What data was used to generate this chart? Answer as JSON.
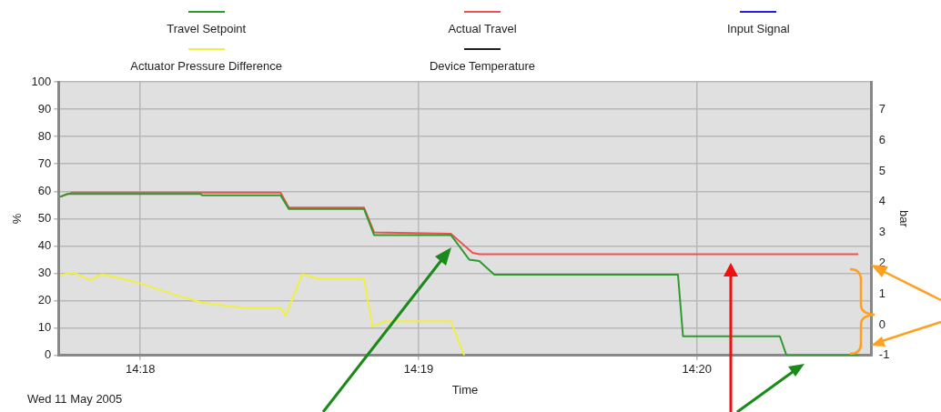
{
  "chart_data": {
    "type": "line",
    "xlabel": "Time",
    "ylabel": "%",
    "y2label": "bar",
    "annotations": [
      "Wed 11 May 2005"
    ],
    "xlim": [
      14.2951,
      14.3438
    ],
    "xticks": [
      {
        "value": 14.3,
        "label": "14:18"
      },
      {
        "value": 14.316667,
        "label": "14:19"
      },
      {
        "value": 14.333333,
        "label": "14:20"
      }
    ],
    "ylim": [
      0,
      100
    ],
    "yticks": [
      0,
      10,
      20,
      30,
      40,
      50,
      60,
      70,
      80,
      90,
      100
    ],
    "y2lim": [
      -1,
      7.9
    ],
    "y2ticks": [
      -1,
      0,
      1,
      2,
      3,
      4,
      5,
      6,
      7
    ],
    "grid": true,
    "legend": "top",
    "marker": "none",
    "series": [
      {
        "name": "Travel Setpoint",
        "color": "#2e9a2e",
        "x": [
          14.2952,
          14.2956,
          14.3036,
          14.3037,
          14.3084,
          14.3089,
          14.3134,
          14.314,
          14.3186,
          14.3197,
          14.3203,
          14.3212,
          14.3322,
          14.3325,
          14.3383,
          14.3387,
          14.343
        ],
        "values": [
          58,
          59,
          59,
          58.5,
          58.5,
          53.5,
          53.5,
          44,
          44,
          35,
          34.5,
          29.5,
          29.5,
          7,
          7,
          0,
          0
        ]
      },
      {
        "name": "Actual Travel",
        "color": "#f05050",
        "x": [
          14.2952,
          14.2959,
          14.3084,
          14.3089,
          14.3134,
          14.314,
          14.3186,
          14.3199,
          14.3203,
          14.343
        ],
        "values": [
          58,
          59.5,
          59.5,
          54,
          54,
          45,
          44.5,
          37.5,
          37,
          37
        ]
      },
      {
        "name": "Input Signal",
        "color": "#2020e0"
      },
      {
        "name": "Actuator Pressure Difference",
        "color": "#f0f040",
        "x": [
          14.2952,
          14.296,
          14.297,
          14.2977,
          14.2999,
          14.3019,
          14.3037,
          14.3063,
          14.3084,
          14.3087,
          14.3097,
          14.3107,
          14.3134,
          14.3139,
          14.3147,
          14.3186,
          14.3194
        ],
        "values": [
          29.4,
          30.3,
          27.5,
          29.7,
          26.5,
          22.5,
          19.3,
          17.3,
          17.3,
          14.5,
          29.7,
          28,
          28,
          10.7,
          12.5,
          12.5,
          0
        ]
      },
      {
        "name": "Device Temperature",
        "color": "#202020"
      }
    ]
  }
}
